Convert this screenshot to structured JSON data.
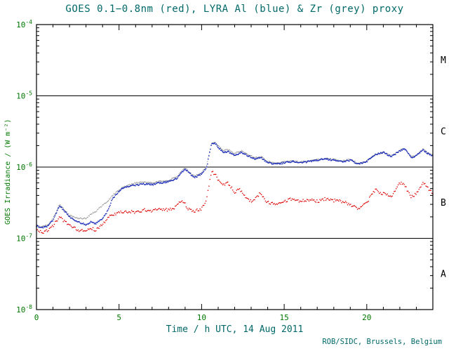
{
  "chart_data": {
    "type": "line",
    "title": "GOES 0.1−0.8nm (red), LYRA Al (blue) & Zr (grey) proxy",
    "xlabel": "Time / h UTC, 14 Aug 2011",
    "ylabel": "GOES Irradiance / (W m⁻²)",
    "credit": "ROB/SIDC, Brussels, Belgium",
    "x_range": [
      0,
      24
    ],
    "y_log_range": [
      -8,
      -4
    ],
    "x_major_ticks": [
      0,
      5,
      10,
      15,
      20
    ],
    "x_minor_step": 1,
    "y_ticks": [
      {
        "mantissa": "10",
        "exp": "-4",
        "log": -4
      },
      {
        "mantissa": "10",
        "exp": "-5",
        "log": -5
      },
      {
        "mantissa": "10",
        "exp": "-6",
        "log": -6
      },
      {
        "mantissa": "10",
        "exp": "-7",
        "log": -7
      },
      {
        "mantissa": "10",
        "exp": "-8",
        "log": -8
      }
    ],
    "hline_logs": [
      -5,
      -6,
      -7
    ],
    "flare_classes": [
      {
        "label": "M",
        "log_center": -4.5
      },
      {
        "label": "C",
        "log_center": -5.5
      },
      {
        "label": "B",
        "log_center": -6.5
      },
      {
        "label": "A",
        "log_center": -7.5
      }
    ],
    "colors": {
      "frame": "#000000",
      "tick_labels": "#007700",
      "title": "#006868",
      "ylabel": "#007700",
      "xlabel": "#006868",
      "credit": "#006868",
      "flare_class": "#000000"
    },
    "series": [
      {
        "name": "GOES 0.1-0.8nm",
        "color": "#dd0000",
        "points": [
          [
            0,
            1.35e-07
          ],
          [
            0.3,
            1.2e-07
          ],
          [
            0.7,
            1.3e-07
          ],
          [
            1.0,
            1.5e-07
          ],
          [
            1.4,
            2e-07
          ],
          [
            1.6,
            1.8e-07
          ],
          [
            2.0,
            1.5e-07
          ],
          [
            2.5,
            1.3e-07
          ],
          [
            3.0,
            1.25e-07
          ],
          [
            3.3,
            1.4e-07
          ],
          [
            3.6,
            1.3e-07
          ],
          [
            4.0,
            1.6e-07
          ],
          [
            4.5,
            2.1e-07
          ],
          [
            5.0,
            2.3e-07
          ],
          [
            5.5,
            2.4e-07
          ],
          [
            6.0,
            2.3e-07
          ],
          [
            6.5,
            2.5e-07
          ],
          [
            7.0,
            2.4e-07
          ],
          [
            7.5,
            2.6e-07
          ],
          [
            8.0,
            2.5e-07
          ],
          [
            8.5,
            2.8e-07
          ],
          [
            8.8,
            3.5e-07
          ],
          [
            9.2,
            2.6e-07
          ],
          [
            9.5,
            2.4e-07
          ],
          [
            10.0,
            2.6e-07
          ],
          [
            10.3,
            3.5e-07
          ],
          [
            10.6,
            9e-07
          ],
          [
            10.8,
            8e-07
          ],
          [
            11.0,
            6.5e-07
          ],
          [
            11.3,
            5.5e-07
          ],
          [
            11.6,
            6e-07
          ],
          [
            12.0,
            4.5e-07
          ],
          [
            12.3,
            4.8e-07
          ],
          [
            12.7,
            3.8e-07
          ],
          [
            13.0,
            3.3e-07
          ],
          [
            13.5,
            4.2e-07
          ],
          [
            14.0,
            3.2e-07
          ],
          [
            14.5,
            3e-07
          ],
          [
            15.0,
            3.3e-07
          ],
          [
            15.5,
            3.6e-07
          ],
          [
            16.0,
            3.3e-07
          ],
          [
            16.5,
            3.5e-07
          ],
          [
            17.0,
            3.3e-07
          ],
          [
            17.5,
            3.6e-07
          ],
          [
            18.0,
            3.4e-07
          ],
          [
            18.5,
            3.3e-07
          ],
          [
            19.0,
            3e-07
          ],
          [
            19.5,
            2.6e-07
          ],
          [
            20.0,
            3.2e-07
          ],
          [
            20.5,
            4.8e-07
          ],
          [
            21.0,
            4.2e-07
          ],
          [
            21.5,
            4e-07
          ],
          [
            22.0,
            6e-07
          ],
          [
            22.3,
            5.5e-07
          ],
          [
            22.7,
            3.8e-07
          ],
          [
            23.0,
            4.2e-07
          ],
          [
            23.4,
            6.2e-07
          ],
          [
            23.7,
            5e-07
          ],
          [
            24.0,
            4.2e-07
          ]
        ]
      },
      {
        "name": "LYRA Al",
        "color": "#2233bb",
        "points": [
          [
            0,
            1.5e-07
          ],
          [
            0.3,
            1.4e-07
          ],
          [
            0.7,
            1.5e-07
          ],
          [
            1.0,
            1.8e-07
          ],
          [
            1.4,
            2.9e-07
          ],
          [
            1.7,
            2.4e-07
          ],
          [
            2.0,
            2e-07
          ],
          [
            2.5,
            1.7e-07
          ],
          [
            3.0,
            1.55e-07
          ],
          [
            3.3,
            1.7e-07
          ],
          [
            3.6,
            1.6e-07
          ],
          [
            4.0,
            1.9e-07
          ],
          [
            4.3,
            2.4e-07
          ],
          [
            4.6,
            3.6e-07
          ],
          [
            5.0,
            4.6e-07
          ],
          [
            5.3,
            5.2e-07
          ],
          [
            5.6,
            5.4e-07
          ],
          [
            6.0,
            5.6e-07
          ],
          [
            6.5,
            5.8e-07
          ],
          [
            7.0,
            5.7e-07
          ],
          [
            7.5,
            6e-07
          ],
          [
            8.0,
            6.2e-07
          ],
          [
            8.5,
            7e-07
          ],
          [
            8.8,
            8.5e-07
          ],
          [
            9.0,
            9.5e-07
          ],
          [
            9.3,
            8e-07
          ],
          [
            9.6,
            7.2e-07
          ],
          [
            10.0,
            8e-07
          ],
          [
            10.3,
            1e-06
          ],
          [
            10.6,
            2.1e-06
          ],
          [
            10.8,
            2.2e-06
          ],
          [
            11.0,
            1.9e-06
          ],
          [
            11.3,
            1.6e-06
          ],
          [
            11.6,
            1.65e-06
          ],
          [
            12.0,
            1.45e-06
          ],
          [
            12.4,
            1.6e-06
          ],
          [
            12.8,
            1.45e-06
          ],
          [
            13.2,
            1.3e-06
          ],
          [
            13.6,
            1.35e-06
          ],
          [
            14.0,
            1.15e-06
          ],
          [
            14.5,
            1.1e-06
          ],
          [
            15.0,
            1.15e-06
          ],
          [
            15.5,
            1.2e-06
          ],
          [
            16.0,
            1.15e-06
          ],
          [
            16.5,
            1.2e-06
          ],
          [
            17.0,
            1.25e-06
          ],
          [
            17.5,
            1.3e-06
          ],
          [
            18.0,
            1.25e-06
          ],
          [
            18.5,
            1.2e-06
          ],
          [
            19.0,
            1.25e-06
          ],
          [
            19.5,
            1.1e-06
          ],
          [
            20.0,
            1.2e-06
          ],
          [
            20.5,
            1.5e-06
          ],
          [
            21.0,
            1.6e-06
          ],
          [
            21.5,
            1.4e-06
          ],
          [
            22.0,
            1.7e-06
          ],
          [
            22.3,
            1.8e-06
          ],
          [
            22.7,
            1.35e-06
          ],
          [
            23.0,
            1.45e-06
          ],
          [
            23.4,
            1.75e-06
          ],
          [
            23.7,
            1.55e-06
          ],
          [
            24.0,
            1.45e-06
          ]
        ]
      },
      {
        "name": "LYRA Zr proxy",
        "color": "#999999",
        "points": [
          [
            0,
            1.5e-07
          ],
          [
            0.3,
            1.45e-07
          ],
          [
            0.7,
            1.55e-07
          ],
          [
            1.0,
            1.9e-07
          ],
          [
            1.4,
            3e-07
          ],
          [
            1.7,
            2.5e-07
          ],
          [
            2.0,
            2.1e-07
          ],
          [
            2.5,
            1.9e-07
          ],
          [
            3.0,
            1.9e-07
          ],
          [
            3.3,
            2.2e-07
          ],
          [
            3.6,
            2.4e-07
          ],
          [
            4.0,
            2.9e-07
          ],
          [
            4.3,
            3.3e-07
          ],
          [
            4.6,
            4e-07
          ],
          [
            5.0,
            4.8e-07
          ],
          [
            5.3,
            5.3e-07
          ],
          [
            5.6,
            5.6e-07
          ],
          [
            6.0,
            6e-07
          ],
          [
            6.5,
            6.2e-07
          ],
          [
            7.0,
            6e-07
          ],
          [
            7.5,
            6.3e-07
          ],
          [
            8.0,
            6.5e-07
          ],
          [
            8.5,
            7.3e-07
          ],
          [
            8.8,
            8.8e-07
          ],
          [
            9.0,
            9.8e-07
          ],
          [
            9.3,
            8.3e-07
          ],
          [
            9.6,
            7.5e-07
          ],
          [
            10.0,
            8.3e-07
          ],
          [
            10.3,
            1.05e-06
          ],
          [
            10.6,
            2.15e-06
          ],
          [
            10.8,
            2.25e-06
          ],
          [
            11.0,
            2e-06
          ],
          [
            11.3,
            1.7e-06
          ],
          [
            11.6,
            1.75e-06
          ],
          [
            12.0,
            1.55e-06
          ],
          [
            12.4,
            1.7e-06
          ],
          [
            12.8,
            1.5e-06
          ],
          [
            13.2,
            1.35e-06
          ],
          [
            13.6,
            1.4e-06
          ],
          [
            14.0,
            1.2e-06
          ],
          [
            14.5,
            1.12e-06
          ],
          [
            15.0,
            1.18e-06
          ],
          [
            15.5,
            1.22e-06
          ],
          [
            16.0,
            1.18e-06
          ],
          [
            16.5,
            1.22e-06
          ],
          [
            17.0,
            1.28e-06
          ],
          [
            17.5,
            1.32e-06
          ],
          [
            18.0,
            1.28e-06
          ],
          [
            18.5,
            1.22e-06
          ],
          [
            19.0,
            1.28e-06
          ],
          [
            19.5,
            1.12e-06
          ],
          [
            20.0,
            1.22e-06
          ],
          [
            20.5,
            1.5e-06
          ],
          [
            21.0,
            1.62e-06
          ],
          [
            21.5,
            1.42e-06
          ],
          [
            22.0,
            1.72e-06
          ],
          [
            22.3,
            1.82e-06
          ],
          [
            22.7,
            1.38e-06
          ],
          [
            23.0,
            1.48e-06
          ],
          [
            23.4,
            1.78e-06
          ],
          [
            23.7,
            1.58e-06
          ],
          [
            24.0,
            1.48e-06
          ]
        ]
      }
    ]
  }
}
